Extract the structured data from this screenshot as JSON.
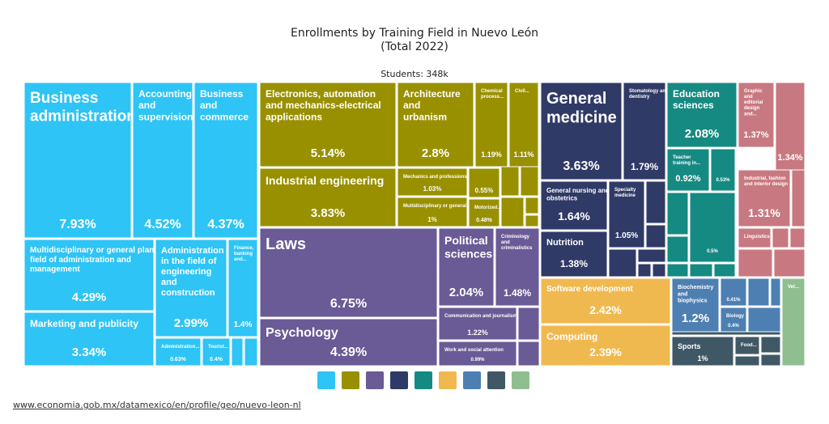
{
  "header": {
    "title_line1": "Enrollments by Training Field in Nuevo León",
    "title_line2": "(Total 2022)",
    "subtitle": "Students: 348k"
  },
  "footer": {
    "source": "www.economia.gob.mx/datamexico/en/profile/geo/nuevo-leon-nl"
  },
  "colors": {
    "blue": "#2ec4f5",
    "olive": "#999000",
    "purple": "#6a5a95",
    "navy": "#303a66",
    "teal": "#158a82",
    "yellow": "#f0b950",
    "steel": "#4d7fb2",
    "slate": "#405866",
    "green": "#8fbf90",
    "rose": "#c87880"
  },
  "legend": [
    "#2ec4f5",
    "#999000",
    "#6a5a95",
    "#303a66",
    "#158a82",
    "#f0b950",
    "#4d7fb2",
    "#405866",
    "#8fbf90"
  ],
  "chart_data": {
    "type": "treemap",
    "total": "348k",
    "items": [
      {
        "name": "Business administration",
        "value": 7.93,
        "label": "7.93%",
        "group": "blue"
      },
      {
        "name": "Accounting and supervision",
        "value": 4.52,
        "label": "4.52%",
        "group": "blue"
      },
      {
        "name": "Business and commerce",
        "value": 4.37,
        "label": "4.37%",
        "group": "blue"
      },
      {
        "name": "Multidisciplinary or general plans field of administration and management",
        "value": 4.29,
        "label": "4.29%",
        "group": "blue"
      },
      {
        "name": "Marketing and publicity",
        "value": 3.34,
        "label": "3.34%",
        "group": "blue"
      },
      {
        "name": "Administration in the field of engineering and construction",
        "value": 2.99,
        "label": "2.99%",
        "group": "blue"
      },
      {
        "name": "Finance, banking and...",
        "value": 1.4,
        "label": "1.4%",
        "group": "blue"
      },
      {
        "name": "Administration...",
        "value": 0.63,
        "label": "0.63%",
        "group": "blue"
      },
      {
        "name": "Tourist...",
        "value": 0.4,
        "label": "0.4%",
        "group": "blue"
      },
      {
        "name": "Electronics, automation and mechanics-electrical applications",
        "value": 5.14,
        "label": "5.14%",
        "group": "olive"
      },
      {
        "name": "Industrial engineering",
        "value": 3.83,
        "label": "3.83%",
        "group": "olive"
      },
      {
        "name": "Architecture and urbanism",
        "value": 2.8,
        "label": "2.8%",
        "group": "olive"
      },
      {
        "name": "Chemical process...",
        "value": 1.19,
        "label": "1.19%",
        "group": "olive"
      },
      {
        "name": "Civil...",
        "value": 1.11,
        "label": "1.11%",
        "group": "olive"
      },
      {
        "name": "Mechanics and professions...",
        "value": 1.03,
        "label": "1.03%",
        "group": "olive"
      },
      {
        "name": "Multidisciplinary or general...",
        "value": 1,
        "label": "1%",
        "group": "olive"
      },
      {
        "name": "",
        "value": 0.55,
        "label": "0.55%",
        "group": "olive"
      },
      {
        "name": "Motorized...",
        "value": 0.48,
        "label": "0.48%",
        "group": "olive"
      },
      {
        "name": "Laws",
        "value": 6.75,
        "label": "6.75%",
        "group": "purple"
      },
      {
        "name": "Psychology",
        "value": 4.39,
        "label": "4.39%",
        "group": "purple"
      },
      {
        "name": "Political sciences",
        "value": 2.04,
        "label": "2.04%",
        "group": "purple"
      },
      {
        "name": "Criminology and criminalistics",
        "value": 1.48,
        "label": "1.48%",
        "group": "purple"
      },
      {
        "name": "Communication and journalism",
        "value": 1.22,
        "label": "1.22%",
        "group": "purple"
      },
      {
        "name": "Work and social attention",
        "value": 0.99,
        "label": "0.99%",
        "group": "purple"
      },
      {
        "name": "General medicine",
        "value": 3.63,
        "label": "3.63%",
        "group": "navy"
      },
      {
        "name": "Stomatology and general dentistry",
        "value": 1.79,
        "label": "1.79%",
        "group": "navy"
      },
      {
        "name": "General nursing and obstetrics",
        "value": 1.64,
        "label": "1.64%",
        "group": "navy"
      },
      {
        "name": "Nutrition",
        "value": 1.38,
        "label": "1.38%",
        "group": "navy"
      },
      {
        "name": "Specialty medicine",
        "value": 1.05,
        "label": "1.05%",
        "group": "navy"
      },
      {
        "name": "Education sciences",
        "value": 2.08,
        "label": "2.08%",
        "group": "teal"
      },
      {
        "name": "Teacher training in...",
        "value": 0.92,
        "label": "0.92%",
        "group": "teal"
      },
      {
        "name": "",
        "value": 0.53,
        "label": "0.53%",
        "group": "teal"
      },
      {
        "name": "",
        "value": 0.5,
        "label": "0.5%",
        "group": "teal"
      },
      {
        "name": "Graphic and editorial design and...",
        "value": 1.37,
        "label": "1.37%",
        "group": "rose"
      },
      {
        "name": "",
        "value": 1.34,
        "label": "1.34%",
        "group": "rose"
      },
      {
        "name": "Industrial, fashion and interior design",
        "value": 1.31,
        "label": "1.31%",
        "group": "rose"
      },
      {
        "name": "Linguistics",
        "value": null,
        "label": "",
        "group": "rose"
      },
      {
        "name": "Software development",
        "value": 2.42,
        "label": "2.42%",
        "group": "yellow"
      },
      {
        "name": "Computing",
        "value": 2.39,
        "label": "2.39%",
        "group": "yellow"
      },
      {
        "name": "Biochemistry and biophysics",
        "value": 1.2,
        "label": "1.2%",
        "group": "steel"
      },
      {
        "name": "",
        "value": 0.41,
        "label": "0.41%",
        "group": "steel"
      },
      {
        "name": "Biology",
        "value": 0.4,
        "label": "0.4%",
        "group": "steel"
      },
      {
        "name": "Sports",
        "value": 1,
        "label": "1%",
        "group": "slate"
      },
      {
        "name": "Food...",
        "value": null,
        "label": "",
        "group": "slate"
      },
      {
        "name": "Vet...",
        "value": null,
        "label": "",
        "group": "green"
      }
    ]
  }
}
